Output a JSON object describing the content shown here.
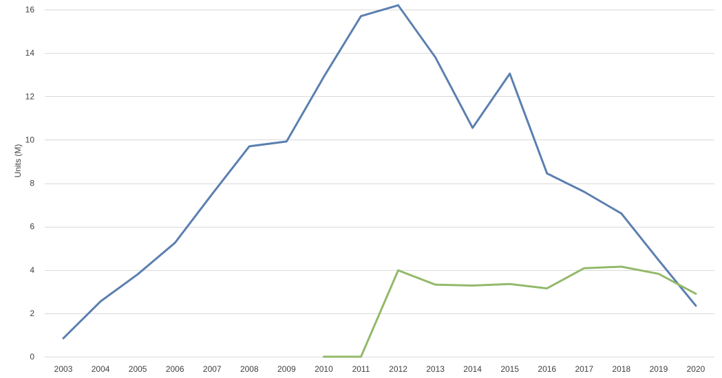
{
  "chart_data": {
    "type": "line",
    "title": "",
    "xlabel": "",
    "ylabel": "Units (M)",
    "x": [
      "2003",
      "2004",
      "2005",
      "2006",
      "2007",
      "2008",
      "2009",
      "2010",
      "2011",
      "2012",
      "2013",
      "2014",
      "2015",
      "2016",
      "2017",
      "2018",
      "2019",
      "2020"
    ],
    "ylim": [
      0,
      16
    ],
    "yticks": [
      0,
      2,
      4,
      6,
      8,
      10,
      12,
      14,
      16
    ],
    "grid": true,
    "legend": "none",
    "series": [
      {
        "color": "#5b7fb0",
        "values": [
          0.85,
          2.55,
          3.8,
          5.25,
          7.5,
          9.7,
          9.92,
          12.9,
          15.7,
          16.2,
          13.8,
          10.55,
          13.05,
          8.45,
          7.6,
          6.6,
          4.45,
          2.35
        ]
      },
      {
        "color": "#93b96a",
        "values": [
          null,
          null,
          null,
          null,
          null,
          null,
          null,
          0.0,
          0.0,
          3.98,
          3.32,
          3.28,
          3.35,
          3.15,
          4.08,
          4.15,
          3.82,
          2.9
        ]
      }
    ]
  }
}
